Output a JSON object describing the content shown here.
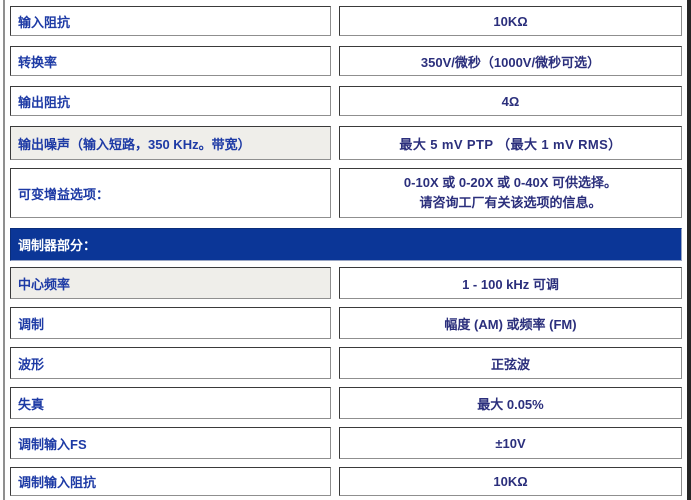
{
  "table": {
    "rows": [
      {
        "label": "输入阻抗",
        "value": "10KΩ"
      },
      {
        "label": "转换率",
        "value": "350V/微秒（1000V/微秒可选）"
      },
      {
        "label": "输出阻抗",
        "value": "4Ω"
      },
      {
        "label": "输出噪声（输入短路，350 KHz。带宽）",
        "value": "最大 5 mV PTP （最大 1 mV RMS）"
      },
      {
        "label": "可变增益选项：",
        "value": "0-10X 或 0-20X 或 0-40X 可供选择。\n请咨询工厂有关该选项的信息。"
      },
      {
        "label": "中心频率",
        "value": "1 - 100 kHz 可调"
      },
      {
        "label": "调制",
        "value": "幅度 (AM) 或频率 (FM)"
      },
      {
        "label": "波形",
        "value": "正弦波"
      },
      {
        "label": "失真",
        "value": "最大 0.05%"
      },
      {
        "label": "调制输入FS",
        "value": "±10V"
      },
      {
        "label": "调制输入阻抗",
        "value": "10KΩ"
      }
    ],
    "section_header": {
      "title": "调制器部分："
    }
  },
  "colors": {
    "header_bg": "#0b3697",
    "header_text": "#ffffff",
    "label_text": "#1d3aa5",
    "value_text": "#2b2f7c",
    "shaded_cell_bg": "#efeeea",
    "cell_border_dark": "#3a3a3a",
    "cell_border_light": "#8f8f8f"
  }
}
